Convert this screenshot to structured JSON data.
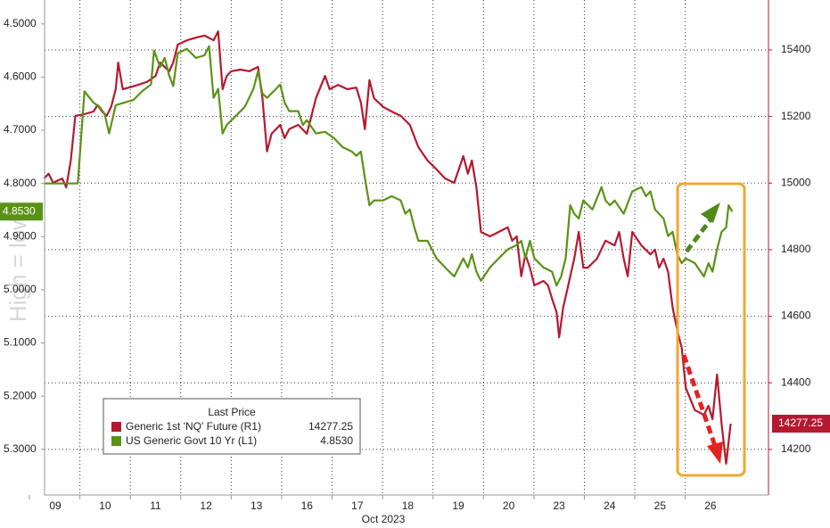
{
  "chart_data": {
    "type": "line",
    "annotation": "High = low",
    "x_label": "Oct 2023",
    "xlim": [
      0.3,
      14.65
    ],
    "xticks": [
      {
        "value": 0,
        "label": "09"
      },
      {
        "value": 1,
        "label": "10"
      },
      {
        "value": 2,
        "label": "11"
      },
      {
        "value": 3,
        "label": "12"
      },
      {
        "value": 4,
        "label": "13"
      },
      {
        "value": 5,
        "label": "16"
      },
      {
        "value": 6,
        "label": "17"
      },
      {
        "value": 7,
        "label": "18"
      },
      {
        "value": 8,
        "label": "19"
      },
      {
        "value": 9,
        "label": "20"
      },
      {
        "value": 10,
        "label": "23"
      },
      {
        "value": 11,
        "label": "24"
      },
      {
        "value": 12,
        "label": "25"
      },
      {
        "value": 13,
        "label": "26"
      }
    ],
    "ylim": [
      4.455,
      5.386
    ],
    "y_inverted": true,
    "yticks": [
      {
        "value": 4.5,
        "label": "4.5000"
      },
      {
        "value": 4.6,
        "label": "4.6000"
      },
      {
        "value": 4.7,
        "label": "4.7000"
      },
      {
        "value": 4.8,
        "label": "4.8000"
      },
      {
        "value": 4.9,
        "label": "4.9000"
      },
      {
        "value": 5.0,
        "label": "5.0000"
      },
      {
        "value": 5.1,
        "label": "5.1000"
      },
      {
        "value": 5.2,
        "label": "5.2000"
      },
      {
        "value": 5.3,
        "label": "5.3000"
      }
    ],
    "y2lim": [
      14063,
      15550
    ],
    "y2ticks": [
      14200,
      14400,
      14600,
      14800,
      15000,
      15200,
      15400
    ],
    "grid": true,
    "legend": {
      "title": "Last Price",
      "position": "lower left"
    },
    "series": [
      {
        "name": "Generic 1st 'NQ' Future  (R1)",
        "color": "#b5192f",
        "axis": "y2",
        "x": [
          0.29,
          0.38,
          0.47,
          0.65,
          0.73,
          0.82,
          0.91,
          1.09,
          1.27,
          1.35,
          1.44,
          1.53,
          1.62,
          1.71,
          1.76,
          1.85,
          1.97,
          2.15,
          2.33,
          2.5,
          2.59,
          2.77,
          2.85,
          2.94,
          3.12,
          3.3,
          3.47,
          3.65,
          3.74,
          3.83,
          3.91,
          4.0,
          4.18,
          4.36,
          4.53,
          4.62,
          4.71,
          4.8,
          4.97,
          5.06,
          5.15,
          5.33,
          5.5,
          5.68,
          5.86,
          5.95,
          6.12,
          6.3,
          6.48,
          6.57,
          6.65,
          6.74,
          6.83,
          7.01,
          7.18,
          7.36,
          7.54,
          7.71,
          7.89,
          8.07,
          8.24,
          8.42,
          8.51,
          8.6,
          8.69,
          8.77,
          8.86,
          8.95,
          9.13,
          9.3,
          9.48,
          9.57,
          9.66,
          9.75,
          9.83,
          9.92,
          10.01,
          10.19,
          10.28,
          10.36,
          10.45,
          10.5,
          10.58,
          10.68,
          10.8,
          10.89,
          10.98,
          11.07,
          11.25,
          11.42,
          11.6,
          11.69,
          11.78,
          11.86,
          11.95,
          12.13,
          12.31,
          12.4,
          12.48,
          12.57,
          12.66,
          12.75,
          12.84,
          12.93,
          13.01,
          13.19,
          13.37,
          13.46,
          13.54,
          13.63,
          13.72,
          13.81,
          13.9
        ],
        "values": [
          15014,
          15028,
          15001,
          15014,
          14987,
          15068,
          15202,
          15207,
          15215,
          15234,
          15215,
          15202,
          15229,
          15282,
          15362,
          15282,
          15287,
          15295,
          15304,
          15322,
          15362,
          15336,
          15362,
          15416,
          15429,
          15437,
          15443,
          15429,
          15456,
          15282,
          15322,
          15336,
          15341,
          15336,
          15349,
          15255,
          15095,
          15148,
          15175,
          15135,
          15162,
          15175,
          15148,
          15255,
          15322,
          15282,
          15295,
          15282,
          15287,
          15242,
          15162,
          15309,
          15255,
          15229,
          15215,
          15202,
          15175,
          15108,
          15068,
          15041,
          15014,
          15001,
          15041,
          15081,
          15028,
          15068,
          14987,
          14853,
          14840,
          14853,
          14867,
          14827,
          14840,
          14720,
          14786,
          14746,
          14693,
          14706,
          14693,
          14653,
          14612,
          14537,
          14626,
          14693,
          14773,
          14853,
          14746,
          14746,
          14773,
          14827,
          14813,
          14853,
          14773,
          14720,
          14853,
          14813,
          14786,
          14800,
          14746,
          14773,
          14733,
          14626,
          14559,
          14505,
          14385,
          14318,
          14304,
          14331,
          14291,
          14425,
          14277,
          14157,
          14277.25
        ]
      },
      {
        "name": "US Generic Govt 10 Yr  (L1)",
        "color": "#5a9216",
        "last_label": "4.8530",
        "x": [
          0.29,
          0.96,
          1.09,
          1.27,
          1.39,
          1.49,
          1.58,
          1.71,
          1.88,
          2.06,
          2.24,
          2.41,
          2.47,
          2.59,
          2.68,
          2.77,
          2.85,
          2.94,
          3.12,
          3.3,
          3.47,
          3.56,
          3.65,
          3.74,
          3.83,
          3.91,
          4.09,
          4.27,
          4.44,
          4.53,
          4.62,
          4.71,
          4.89,
          4.97,
          5.06,
          5.15,
          5.33,
          5.42,
          5.5,
          5.68,
          5.86,
          6.04,
          6.21,
          6.39,
          6.48,
          6.57,
          6.65,
          6.74,
          6.83,
          7.01,
          7.18,
          7.36,
          7.45,
          7.54,
          7.63,
          7.71,
          7.89,
          8.07,
          8.24,
          8.42,
          8.6,
          8.69,
          8.77,
          8.86,
          8.95,
          9.13,
          9.3,
          9.48,
          9.66,
          9.75,
          9.83,
          9.92,
          10.01,
          10.19,
          10.36,
          10.45,
          10.54,
          10.63,
          10.72,
          10.8,
          10.89,
          10.98,
          11.16,
          11.34,
          11.42,
          11.51,
          11.6,
          11.78,
          11.95,
          12.13,
          12.22,
          12.31,
          12.4,
          12.48,
          12.57,
          12.66,
          12.75,
          12.84,
          12.93,
          13.01,
          13.19,
          13.37,
          13.46,
          13.54,
          13.63,
          13.72,
          13.81,
          13.86,
          13.93
        ],
        "values": [
          4.8,
          4.8,
          4.627,
          4.648,
          4.656,
          4.669,
          4.706,
          4.653,
          4.648,
          4.643,
          4.626,
          4.614,
          4.55,
          4.581,
          4.564,
          4.597,
          4.617,
          4.555,
          4.547,
          4.564,
          4.559,
          4.542,
          4.639,
          4.622,
          4.706,
          4.69,
          4.673,
          4.656,
          4.622,
          4.589,
          4.631,
          4.639,
          4.622,
          4.614,
          4.648,
          4.664,
          4.664,
          4.69,
          4.681,
          4.706,
          4.703,
          4.715,
          4.732,
          4.74,
          4.748,
          4.74,
          4.79,
          4.841,
          4.832,
          4.832,
          4.824,
          4.832,
          4.857,
          4.849,
          4.883,
          4.908,
          4.908,
          4.941,
          4.958,
          4.975,
          4.941,
          4.958,
          4.933,
          4.966,
          4.983,
          4.958,
          4.941,
          4.924,
          4.916,
          4.908,
          4.941,
          4.908,
          4.941,
          4.958,
          4.966,
          4.992,
          4.975,
          4.941,
          4.841,
          4.857,
          4.866,
          4.832,
          4.849,
          4.807,
          4.832,
          4.841,
          4.832,
          4.857,
          4.815,
          4.807,
          4.824,
          4.815,
          4.849,
          4.857,
          4.866,
          4.899,
          4.891,
          4.933,
          4.95,
          4.941,
          4.95,
          4.975,
          4.95,
          4.966,
          4.924,
          4.891,
          4.883,
          4.841,
          4.853
        ]
      }
    ]
  }
}
